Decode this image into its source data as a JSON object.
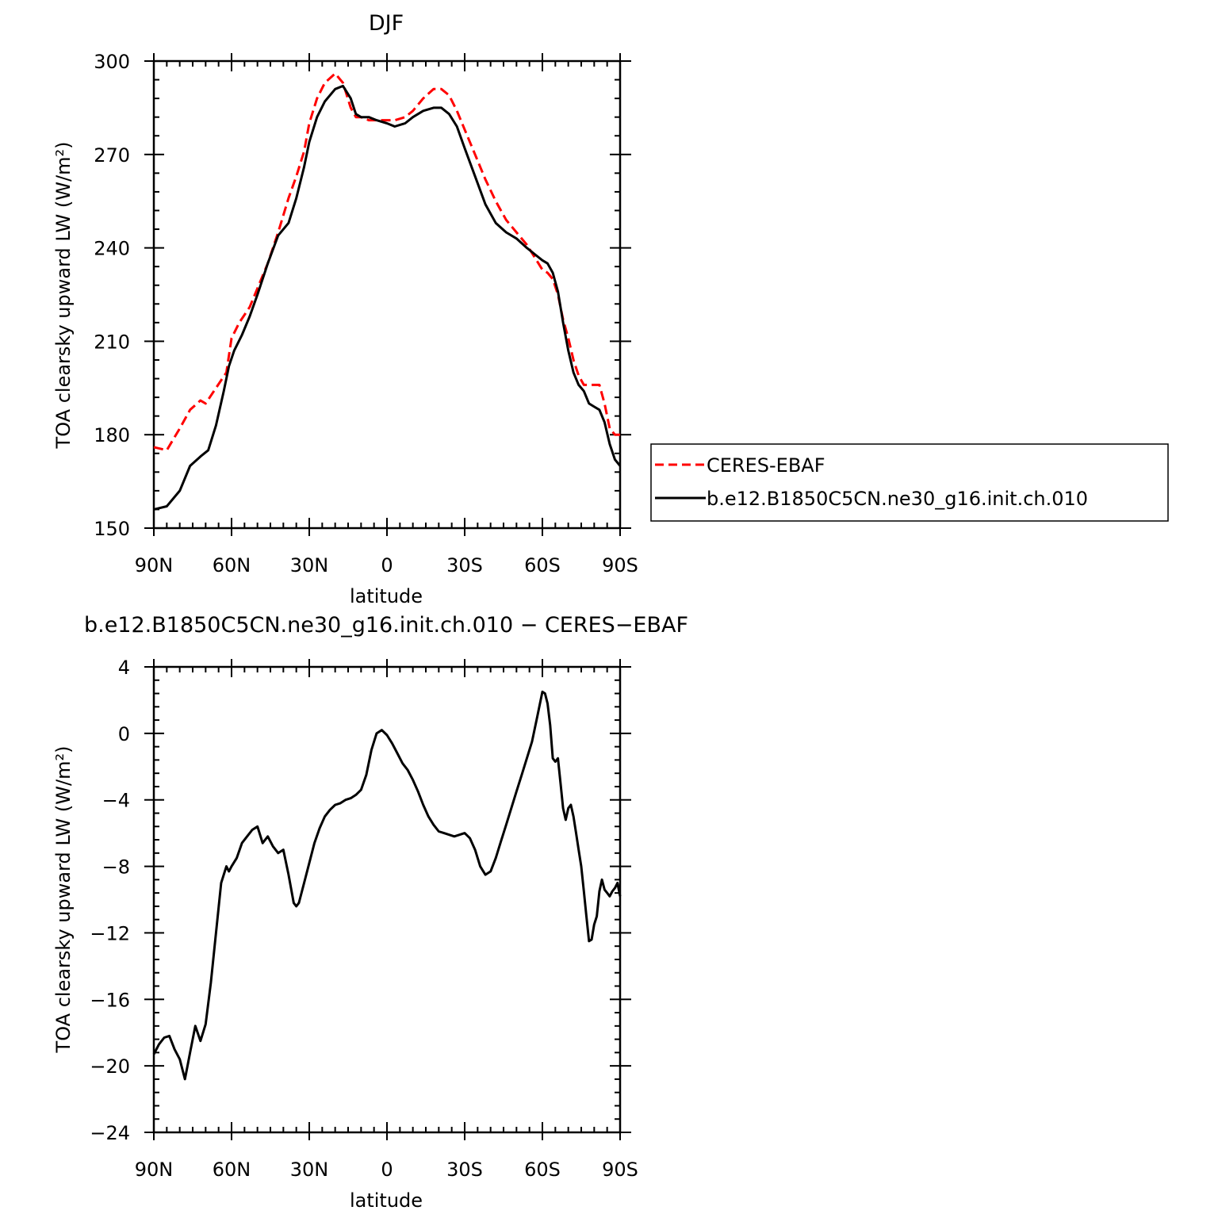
{
  "chart_data": [
    {
      "type": "line",
      "title": "DJF",
      "xlabel": "latitude",
      "ylabel": "TOA clearsky upward LW (W/m²)",
      "xlim": [
        90,
        -90
      ],
      "ylim": [
        150,
        300
      ],
      "xticks": [
        90,
        60,
        30,
        0,
        -30,
        -60,
        -90
      ],
      "xtick_labels": [
        "90N",
        "60N",
        "30N",
        "0",
        "30S",
        "60S",
        "90S"
      ],
      "yticks": [
        150,
        180,
        210,
        240,
        270,
        300
      ],
      "ytick_labels": [
        "150",
        "180",
        "210",
        "240",
        "270",
        "300"
      ],
      "legend": "right",
      "series": [
        {
          "name": "CERES-EBAF",
          "color": "#ff0000",
          "dash": "dashed",
          "x": [
            90,
            85,
            80,
            76,
            72,
            70,
            66,
            62,
            60,
            57,
            53,
            50,
            46,
            42,
            38,
            35,
            32,
            30,
            27,
            24,
            20,
            17,
            14,
            12,
            10,
            7,
            4,
            2,
            0,
            -3,
            -7,
            -10,
            -14,
            -18,
            -21,
            -24,
            -27,
            -30,
            -34,
            -38,
            -42,
            -46,
            -50,
            -54,
            -57,
            -60,
            -62,
            -64,
            -66,
            -68,
            -70,
            -72,
            -74,
            -76,
            -78,
            -80,
            -82,
            -84,
            -86,
            -88,
            -90
          ],
          "y": [
            176,
            175,
            182,
            188,
            191,
            190,
            195,
            200,
            211,
            216,
            221,
            227,
            235,
            245,
            256,
            263,
            271,
            280,
            288,
            293,
            296,
            293,
            285,
            282,
            282,
            281,
            281,
            281,
            281,
            281,
            282,
            284,
            288,
            291,
            291,
            289,
            284,
            278,
            270,
            262,
            255,
            249,
            245,
            241,
            237,
            233,
            232,
            230,
            225,
            217,
            211,
            204,
            199,
            196,
            196,
            196,
            196,
            190,
            182,
            180,
            180
          ]
        },
        {
          "name": "b.e12.B1850C5CN.ne30_g16.init.ch.010",
          "color": "#000000",
          "dash": "solid",
          "x": [
            90,
            85,
            80,
            76,
            72,
            69,
            66,
            63,
            61,
            59,
            56,
            53,
            50,
            46,
            42,
            38,
            35,
            32,
            30,
            27,
            24,
            20,
            17,
            14,
            12,
            10,
            7,
            4,
            0,
            -3,
            -7,
            -10,
            -14,
            -18,
            -21,
            -24,
            -27,
            -30,
            -34,
            -38,
            -42,
            -46,
            -50,
            -54,
            -57,
            -60,
            -62,
            -64,
            -66,
            -68,
            -70,
            -72,
            -74,
            -76,
            -78,
            -80,
            -82,
            -84,
            -86,
            -88,
            -90
          ],
          "y": [
            156,
            157,
            162,
            170,
            173,
            175,
            183,
            194,
            202,
            207,
            212,
            218,
            225,
            235,
            244,
            248,
            256,
            266,
            274,
            282,
            287,
            291,
            292,
            288,
            283,
            282,
            282,
            281,
            280,
            279,
            280,
            282,
            284,
            285,
            285,
            283,
            279,
            272,
            263,
            254,
            248,
            245,
            243,
            240,
            238,
            236,
            235,
            232,
            226,
            216,
            207,
            200,
            196,
            194,
            190,
            189,
            188,
            184,
            177,
            172,
            170
          ]
        }
      ]
    },
    {
      "type": "line",
      "title": "b.e12.B1850C5CN.ne30_g16.init.ch.010 − CERES−EBAF",
      "xlabel": "latitude",
      "ylabel": "TOA clearsky upward LW (W/m²)",
      "xlim": [
        90,
        -90
      ],
      "ylim": [
        -24,
        4
      ],
      "xticks": [
        90,
        60,
        30,
        0,
        -30,
        -60,
        -90
      ],
      "xtick_labels": [
        "90N",
        "60N",
        "30N",
        "0",
        "30S",
        "60S",
        "90S"
      ],
      "yticks": [
        -24,
        -20,
        -16,
        -12,
        -8,
        -4,
        0,
        4
      ],
      "ytick_labels": [
        "−24",
        "−20",
        "−16",
        "−12",
        "−8",
        "−4",
        "0",
        "4"
      ],
      "series": [
        {
          "color": "#000000",
          "dash": "solid",
          "x": [
            90,
            88,
            86,
            84,
            82,
            80,
            78,
            77,
            76,
            74,
            72,
            70,
            68,
            66,
            64,
            62,
            61,
            60,
            58,
            56,
            54,
            52,
            50,
            48,
            46,
            44,
            42,
            40,
            38,
            36,
            35,
            34,
            32,
            30,
            28,
            26,
            24,
            22,
            20,
            18,
            16,
            14,
            12,
            10,
            8,
            6,
            4,
            2,
            0,
            -2,
            -4,
            -6,
            -8,
            -10,
            -12,
            -14,
            -16,
            -18,
            -20,
            -22,
            -24,
            -26,
            -28,
            -30,
            -32,
            -34,
            -36,
            -38,
            -40,
            -42,
            -44,
            -46,
            -48,
            -50,
            -52,
            -54,
            -56,
            -58,
            -60,
            -61,
            -62,
            -63,
            -64,
            -65,
            -66,
            -67,
            -68,
            -69,
            -70,
            -71,
            -72,
            -73,
            -74,
            -75,
            -76,
            -77,
            -78,
            -79,
            -80,
            -81,
            -82,
            -83,
            -84,
            -85,
            -86,
            -87,
            -88,
            -89,
            -90
          ],
          "y": [
            -19.3,
            -18.7,
            -18.3,
            -18.2,
            -19.0,
            -19.6,
            -20.8,
            -20.0,
            -19.2,
            -17.6,
            -18.5,
            -17.5,
            -15.0,
            -12.0,
            -9.0,
            -8.0,
            -8.3,
            -8.0,
            -7.5,
            -6.6,
            -6.2,
            -5.8,
            -5.6,
            -6.6,
            -6.2,
            -6.8,
            -7.2,
            -7.0,
            -8.5,
            -10.2,
            -10.4,
            -10.2,
            -9.0,
            -7.8,
            -6.6,
            -5.7,
            -5.0,
            -4.6,
            -4.3,
            -4.2,
            -4.0,
            -3.9,
            -3.7,
            -3.4,
            -2.5,
            -1.0,
            0.0,
            0.2,
            -0.1,
            -0.6,
            -1.2,
            -1.8,
            -2.2,
            -2.8,
            -3.5,
            -4.3,
            -5.0,
            -5.5,
            -5.9,
            -6.0,
            -6.1,
            -6.2,
            -6.1,
            -6.0,
            -6.3,
            -7.0,
            -8.0,
            -8.5,
            -8.3,
            -7.5,
            -6.5,
            -5.5,
            -4.5,
            -3.5,
            -2.5,
            -1.5,
            -0.5,
            1.0,
            2.5,
            2.4,
            1.8,
            0.5,
            -1.5,
            -1.7,
            -1.5,
            -3.0,
            -4.5,
            -5.2,
            -4.5,
            -4.3,
            -5.0,
            -6.0,
            -7.0,
            -8.0,
            -9.5,
            -11.0,
            -12.5,
            -12.4,
            -11.5,
            -11.0,
            -9.5,
            -8.8,
            -9.4,
            -9.6,
            -9.8,
            -9.5,
            -9.3,
            -9.0,
            -9.8
          ]
        }
      ]
    }
  ]
}
